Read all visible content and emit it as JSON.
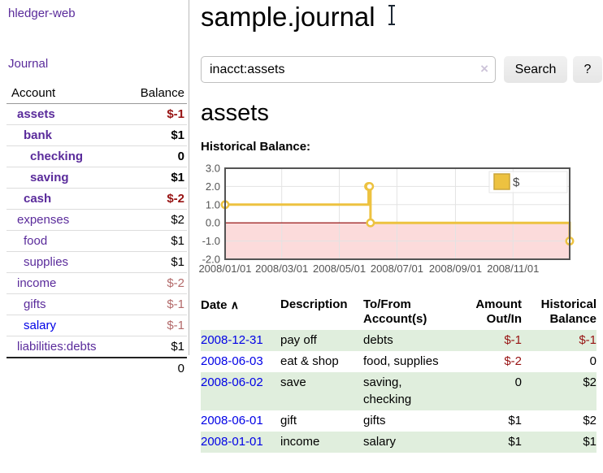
{
  "app": {
    "brand": "hledger-web",
    "nav_journal": "Journal"
  },
  "sidebar": {
    "header": {
      "account": "Account",
      "balance": "Balance"
    },
    "rows": [
      {
        "name": "assets",
        "balance": "$-1"
      },
      {
        "name": "bank",
        "balance": "$1"
      },
      {
        "name": "checking",
        "balance": "0"
      },
      {
        "name": "saving",
        "balance": "$1"
      },
      {
        "name": "cash",
        "balance": "$-2"
      },
      {
        "name": "expenses",
        "balance": "$2"
      },
      {
        "name": "food",
        "balance": "$1"
      },
      {
        "name": "supplies",
        "balance": "$1"
      },
      {
        "name": "income",
        "balance": "$-2"
      },
      {
        "name": "gifts",
        "balance": "$-1"
      },
      {
        "name": "salary",
        "balance": "$-1"
      },
      {
        "name": "liabilities:debts",
        "balance": "$1"
      }
    ],
    "total": "0"
  },
  "header": {
    "title": "sample.journal"
  },
  "search": {
    "value": "inacct:assets",
    "clear_icon": "×",
    "button": "Search",
    "help_button": "?"
  },
  "content": {
    "account_title": "assets",
    "chart_label": "Historical Balance:"
  },
  "chart_data": {
    "type": "line",
    "style": "step",
    "title": "Historical Balance:",
    "series": [
      {
        "name": "$",
        "color": "#EDC240",
        "points": [
          [
            "2008-01-01",
            1
          ],
          [
            "2008-06-01",
            2
          ],
          [
            "2008-06-02",
            2
          ],
          [
            "2008-06-03",
            0
          ],
          [
            "2008-12-31",
            -1
          ]
        ]
      }
    ],
    "xlim": [
      "2008-01-01",
      "2008-12-31"
    ],
    "ylim": [
      -2,
      3
    ],
    "x_ticks": [
      "2008/01/01",
      "2008/03/01",
      "2008/05/01",
      "2008/07/01",
      "2008/09/01",
      "2008/11/01"
    ],
    "y_ticks": [
      "3.0",
      "2.0",
      "1.0",
      "0.0",
      "-1.0",
      "-2.0"
    ],
    "grid": true,
    "negative_region_color": "#fcdbdb",
    "zero_line_color": "#8b0000",
    "grid_line_color": "#e3e3e3",
    "border_color": "#545454",
    "tick_label_color": "#545454",
    "legend": {
      "label": "$",
      "position": "top-right"
    }
  },
  "register": {
    "columns": {
      "date": "Date",
      "sort_icon": "∧",
      "description": "Description",
      "tofrom": "To/From Account(s)",
      "amount": "Amount Out/In",
      "balance": "Historical Balance"
    },
    "rows": [
      {
        "date": "2008-12-31",
        "description": "pay off",
        "accounts": "debts",
        "amount": "$-1",
        "balance": "$-1"
      },
      {
        "date": "2008-06-03",
        "description": "eat & shop",
        "accounts": "food, supplies",
        "amount": "$-2",
        "balance": "0"
      },
      {
        "date": "2008-06-02",
        "description": "save",
        "accounts": "saving, checking",
        "amount": "0",
        "balance": "$2"
      },
      {
        "date": "2008-06-01",
        "description": "gift",
        "accounts": "gifts",
        "amount": "$1",
        "balance": "$2"
      },
      {
        "date": "2008-01-01",
        "description": "income",
        "accounts": "salary",
        "amount": "$1",
        "balance": "$1"
      }
    ]
  }
}
